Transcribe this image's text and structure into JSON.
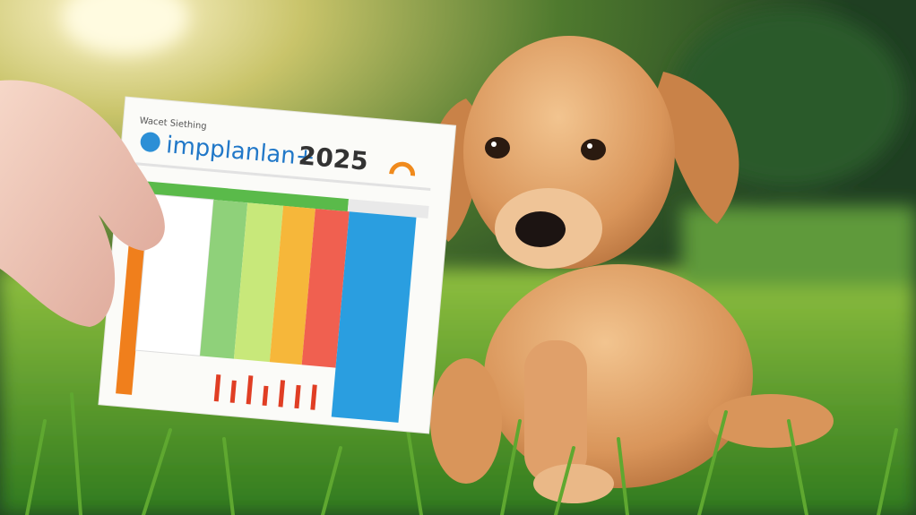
{
  "card": {
    "kicker": "Wacet Siething",
    "title": "impplanlan+",
    "year": "2025"
  }
}
